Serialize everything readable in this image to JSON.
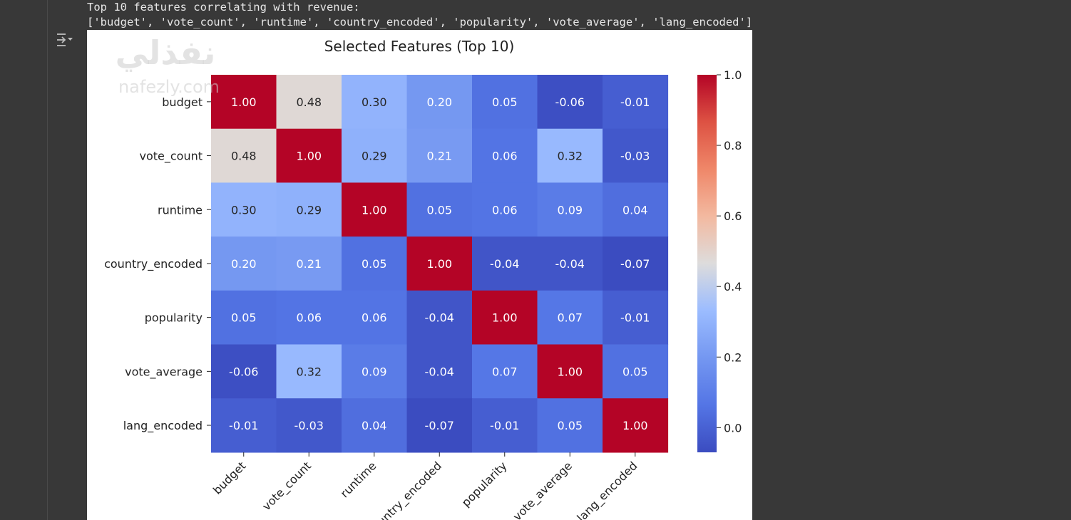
{
  "output": {
    "line1": "Top 10 features correlating with revenue:",
    "line2": "['budget', 'vote_count', 'runtime', 'country_encoded', 'popularity', 'vote_average', 'lang_encoded']",
    "output_icon": "output-toggle-icon"
  },
  "watermark": {
    "text": "نفذلي",
    "url": "nafezly.com"
  },
  "chart_data": {
    "type": "heatmap",
    "title": "Selected Features (Top 10)",
    "rows": [
      "budget",
      "vote_count",
      "runtime",
      "country_encoded",
      "popularity",
      "vote_average",
      "lang_encoded"
    ],
    "cols": [
      "budget",
      "vote_count",
      "runtime",
      "country_encoded",
      "popularity",
      "vote_average",
      "lang_encoded"
    ],
    "values": [
      [
        1.0,
        0.48,
        0.3,
        0.2,
        0.05,
        -0.06,
        -0.01
      ],
      [
        0.48,
        1.0,
        0.29,
        0.21,
        0.06,
        0.32,
        -0.03
      ],
      [
        0.3,
        0.29,
        1.0,
        0.05,
        0.06,
        0.09,
        0.04
      ],
      [
        0.2,
        0.21,
        0.05,
        1.0,
        -0.04,
        -0.04,
        -0.07
      ],
      [
        0.05,
        0.06,
        0.06,
        -0.04,
        1.0,
        0.07,
        -0.01
      ],
      [
        -0.06,
        0.32,
        0.09,
        -0.04,
        0.07,
        1.0,
        0.05
      ],
      [
        -0.01,
        -0.03,
        0.04,
        -0.07,
        -0.01,
        0.05,
        1.0
      ]
    ],
    "colormap": "coolwarm",
    "vmin": -0.07,
    "vmax": 1.0,
    "colorbar_ticks": [
      "0.0",
      "0.2",
      "0.4",
      "0.6",
      "0.8",
      "1.0"
    ],
    "colorbar_tick_values": [
      0.0,
      0.2,
      0.4,
      0.6,
      0.8,
      1.0
    ],
    "annotation_format": "0.00"
  }
}
